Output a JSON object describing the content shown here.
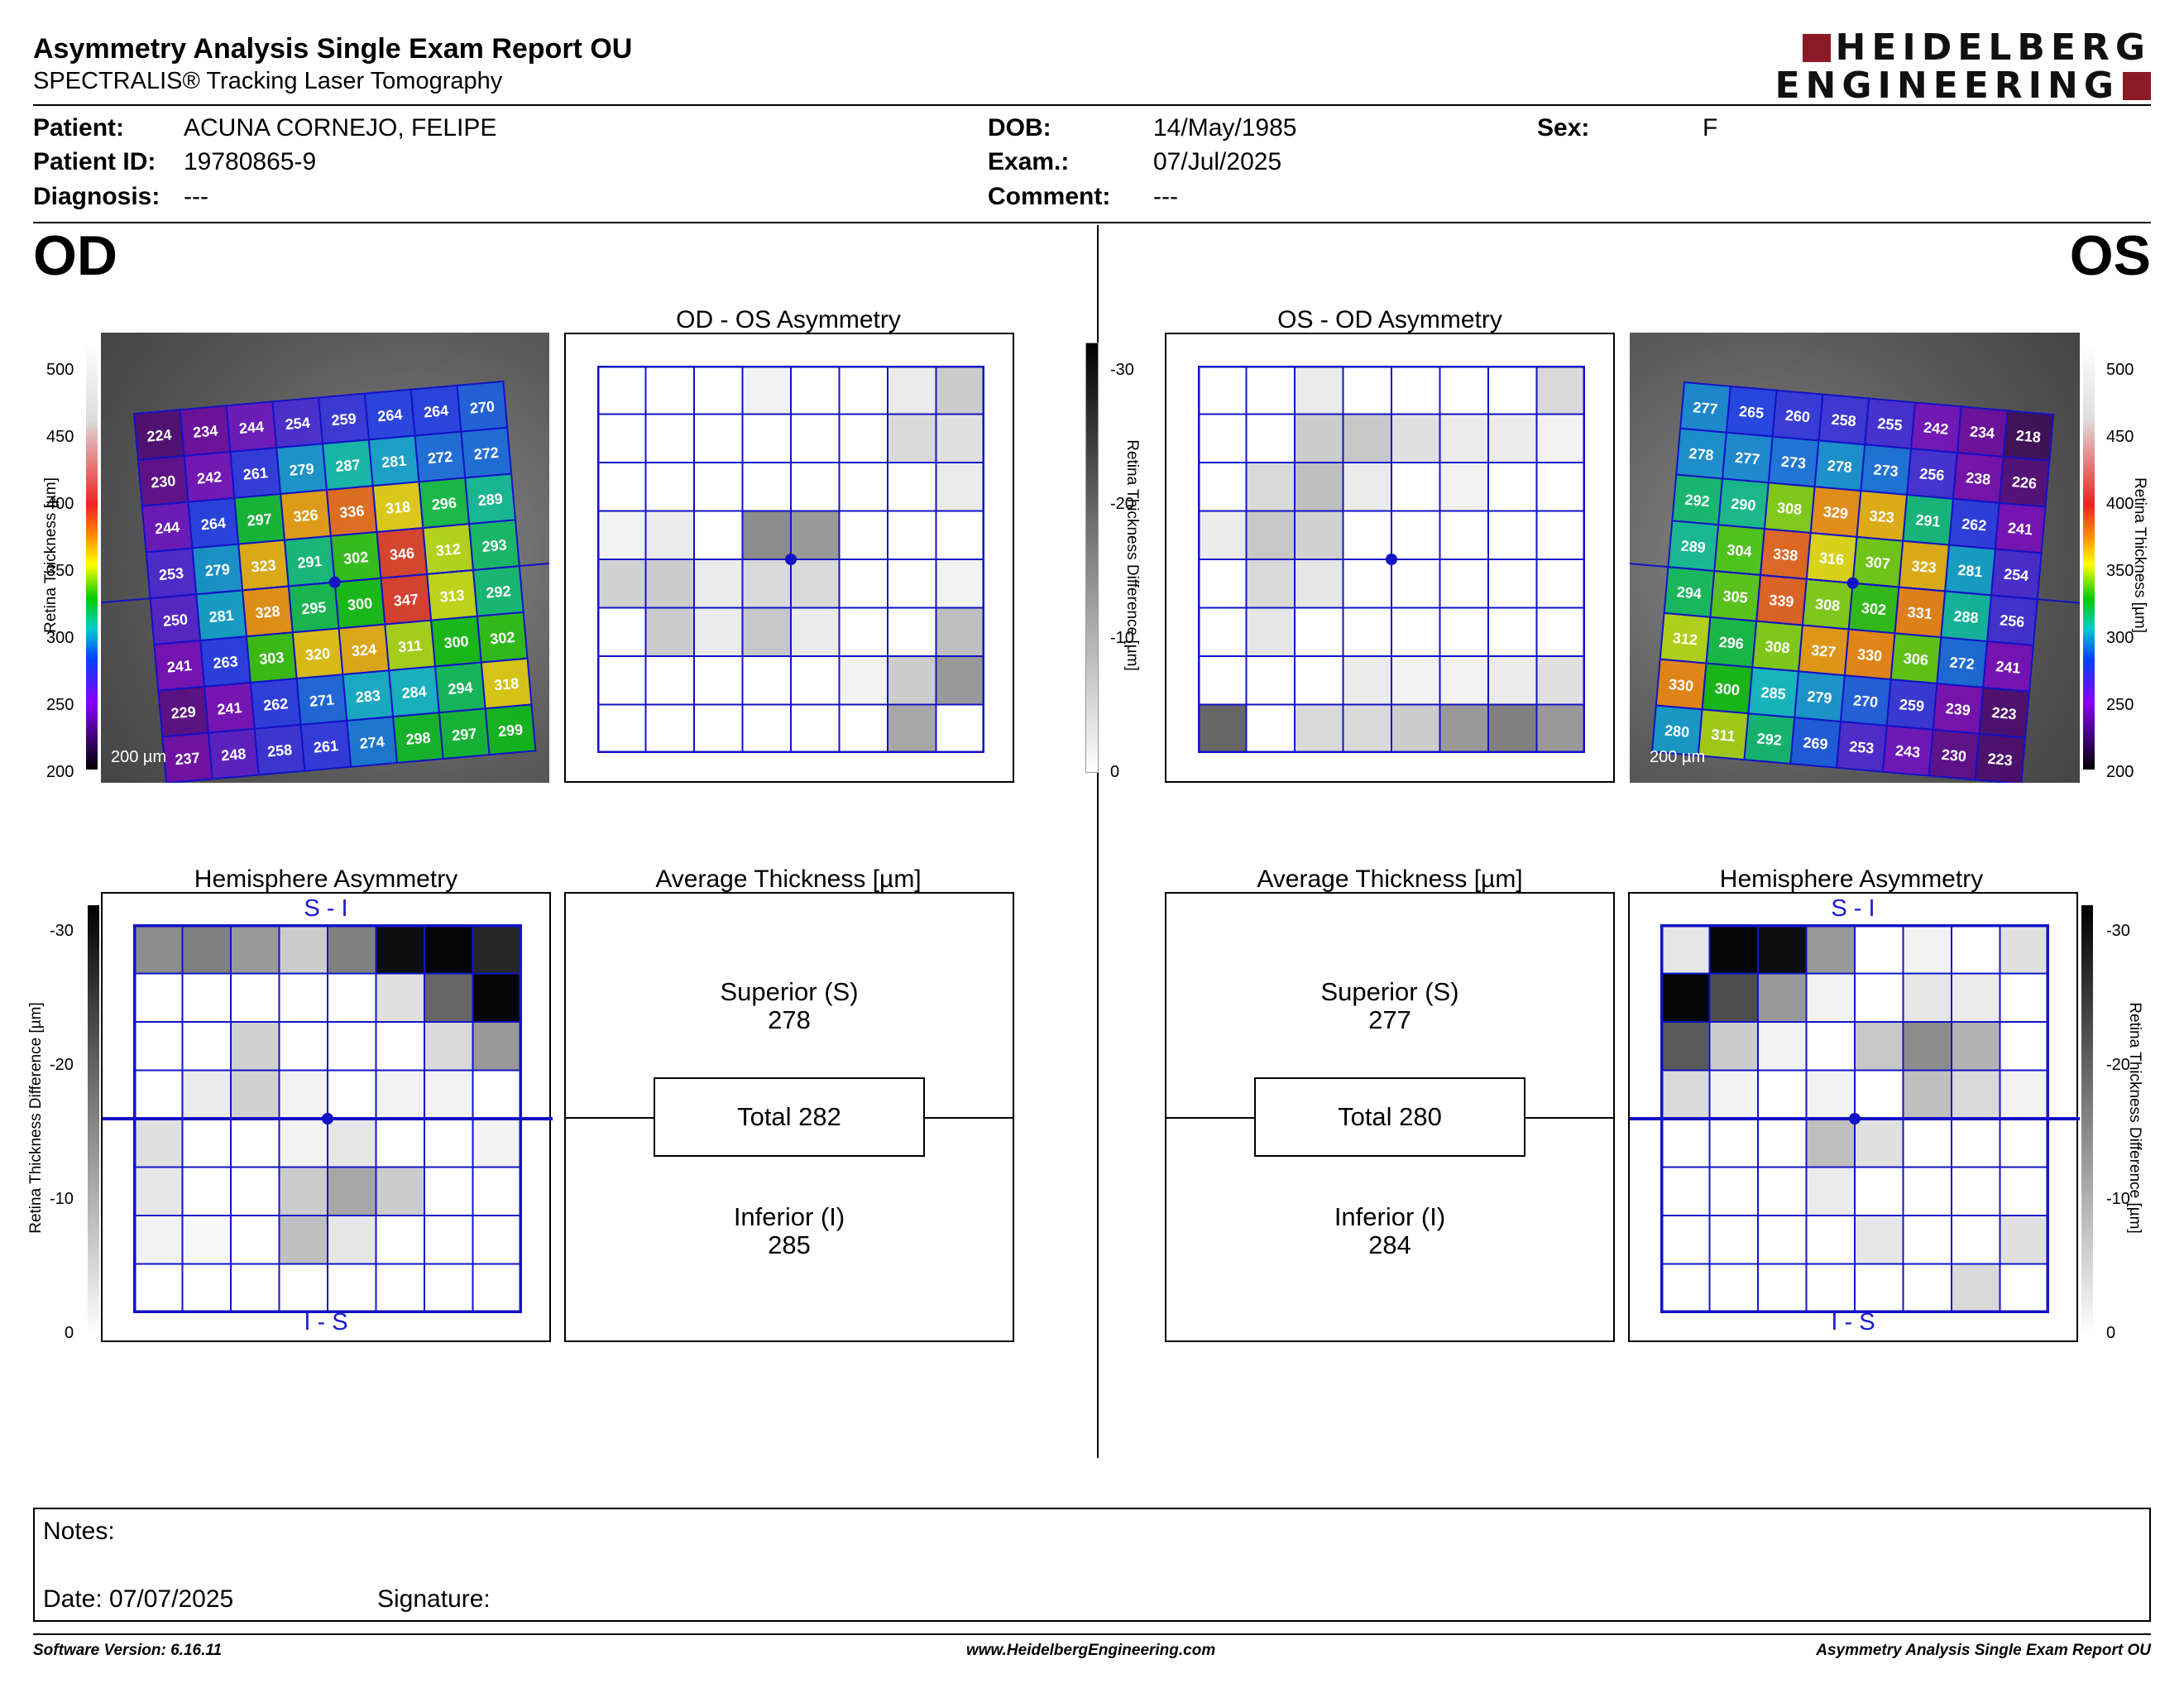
{
  "header": {
    "title": "Asymmetry Analysis Single Exam Report OU",
    "subtitle": "SPECTRALIS® Tracking Laser Tomography",
    "logo_line1": "HEIDELBERG",
    "logo_line2": "ENGINEERING",
    "brand_color": "#8b1a26"
  },
  "patient": {
    "patient_label": "Patient:",
    "patient_value": "ACUNA CORNEJO, FELIPE",
    "id_label": "Patient ID:",
    "id_value": "19780865-9",
    "diagnosis_label": "Diagnosis:",
    "diagnosis_value": "---",
    "dob_label": "DOB:",
    "dob_value": "14/May/1985",
    "exam_label": "Exam.:",
    "exam_value": "07/Jul/2025",
    "comment_label": "Comment:",
    "comment_value": "---",
    "sex_label": "Sex:",
    "sex_value": "F"
  },
  "od": {
    "eye_label": "OD",
    "asym_title": "OD - OS Asymmetry",
    "hemi_title": "Hemisphere Asymmetry",
    "avg_title": "Average Thickness [µm]",
    "superior_label": "Superior (S)",
    "superior_value": "278",
    "total_label": "Total 282",
    "inferior_label": "Inferior (I)",
    "inferior_value": "285",
    "scale_bar": "200 µm",
    "thickness": [
      [
        224,
        234,
        244,
        254,
        259,
        264,
        264,
        270
      ],
      [
        230,
        242,
        261,
        279,
        287,
        281,
        272,
        272
      ],
      [
        244,
        264,
        297,
        326,
        336,
        318,
        296,
        289
      ],
      [
        253,
        279,
        323,
        291,
        302,
        346,
        312,
        293
      ],
      [
        250,
        281,
        328,
        295,
        300,
        347,
        313,
        292
      ],
      [
        241,
        263,
        303,
        320,
        324,
        311,
        300,
        302
      ],
      [
        229,
        241,
        262,
        271,
        283,
        284,
        294,
        318
      ],
      [
        237,
        248,
        258,
        261,
        274,
        298,
        297,
        299
      ]
    ],
    "asym_shade": [
      [
        0,
        0,
        0,
        0.05,
        0,
        0,
        0.08,
        0.2
      ],
      [
        0,
        0,
        0,
        0,
        0,
        0,
        0.15,
        0.12
      ],
      [
        0,
        0,
        0,
        0,
        0,
        0,
        0,
        0.08
      ],
      [
        0.05,
        0.08,
        0,
        0.45,
        0.4,
        0,
        0,
        0
      ],
      [
        0.18,
        0.2,
        0.08,
        0.15,
        0.15,
        0,
        0,
        0.05
      ],
      [
        0,
        0.2,
        0.08,
        0.22,
        0.08,
        0,
        0,
        0.25
      ],
      [
        0,
        0,
        0,
        0,
        0,
        0.05,
        0.2,
        0.4
      ],
      [
        0,
        0,
        0,
        0,
        0,
        0,
        0.35,
        0
      ]
    ],
    "hemi_shade": [
      [
        0.45,
        0.5,
        0.4,
        0.2,
        0.5,
        0.95,
        0.98,
        0.85
      ],
      [
        0,
        0,
        0,
        0,
        0,
        0.12,
        0.6,
        0.98
      ],
      [
        0,
        0,
        0.18,
        0,
        0,
        0,
        0.15,
        0.4
      ],
      [
        0,
        0.08,
        0.18,
        0.05,
        0,
        0.05,
        0.05,
        0
      ],
      [
        0.12,
        0,
        0,
        0.05,
        0.1,
        0,
        0,
        0.05
      ],
      [
        0.1,
        0,
        0,
        0.2,
        0.35,
        0.2,
        0,
        0
      ],
      [
        0.05,
        0.03,
        0,
        0.25,
        0.1,
        0,
        0,
        0
      ],
      [
        0,
        0,
        0,
        0,
        0,
        0,
        0,
        0
      ]
    ]
  },
  "os": {
    "eye_label": "OS",
    "asym_title": "OS - OD Asymmetry",
    "hemi_title": "Hemisphere Asymmetry",
    "avg_title": "Average Thickness [µm]",
    "superior_label": "Superior (S)",
    "superior_value": "277",
    "total_label": "Total 280",
    "inferior_label": "Inferior (I)",
    "inferior_value": "284",
    "scale_bar": "200 µm",
    "thickness": [
      [
        277,
        265,
        260,
        258,
        255,
        242,
        234,
        218
      ],
      [
        278,
        277,
        273,
        278,
        273,
        256,
        238,
        226
      ],
      [
        292,
        290,
        308,
        329,
        323,
        291,
        262,
        241
      ],
      [
        289,
        304,
        338,
        316,
        307,
        323,
        281,
        254
      ],
      [
        294,
        305,
        339,
        308,
        302,
        331,
        288,
        256
      ],
      [
        312,
        296,
        308,
        327,
        330,
        306,
        272,
        241
      ],
      [
        330,
        300,
        285,
        279,
        270,
        259,
        239,
        223
      ],
      [
        280,
        311,
        292,
        269,
        253,
        243,
        230,
        223
      ]
    ],
    "asym_shade": [
      [
        0,
        0,
        0.08,
        0,
        0,
        0,
        0,
        0.15
      ],
      [
        0,
        0,
        0.2,
        0.22,
        0.12,
        0.08,
        0.08,
        0.05
      ],
      [
        0,
        0.15,
        0.25,
        0.08,
        0,
        0.05,
        0,
        0
      ],
      [
        0.08,
        0.22,
        0.18,
        0,
        0,
        0,
        0,
        0
      ],
      [
        0,
        0.15,
        0.1,
        0,
        0,
        0,
        0,
        0
      ],
      [
        0,
        0.1,
        0,
        0,
        0,
        0,
        0,
        0
      ],
      [
        0,
        0,
        0,
        0.08,
        0.05,
        0.05,
        0.08,
        0.12
      ],
      [
        0.6,
        0,
        0.15,
        0.15,
        0.2,
        0.4,
        0.5,
        0.4
      ]
    ],
    "hemi_shade": [
      [
        0.1,
        0.98,
        0.95,
        0.4,
        0,
        0.05,
        0,
        0.12
      ],
      [
        0.98,
        0.7,
        0.4,
        0.05,
        0,
        0.1,
        0.08,
        0
      ],
      [
        0.65,
        0.2,
        0.05,
        0,
        0.22,
        0.45,
        0.3,
        0
      ],
      [
        0.15,
        0.05,
        0,
        0.05,
        0,
        0.25,
        0.15,
        0.05
      ],
      [
        0,
        0,
        0,
        0.25,
        0.12,
        0,
        0,
        0
      ],
      [
        0,
        0,
        0,
        0.08,
        0,
        0,
        0,
        0
      ],
      [
        0,
        0,
        0,
        0,
        0.1,
        0,
        0,
        0.12
      ],
      [
        0,
        0,
        0,
        0,
        0,
        0,
        0.15,
        0
      ]
    ]
  },
  "axes": {
    "thickness_ticks": [
      "500",
      "450",
      "400",
      "350",
      "300",
      "250",
      "200"
    ],
    "thickness_label": "Retina Thickness [µm]",
    "diff_ticks": [
      "-30",
      "-20",
      "-10",
      "0"
    ],
    "diff_label": "Retina Thickness Difference [µm]",
    "hemi_top": "S - I",
    "hemi_bottom": "I - S"
  },
  "notes": {
    "notes_label": "Notes:",
    "date_label": "Date: 07/07/2025",
    "signature_label": "Signature:"
  },
  "footer": {
    "software": "Software Version: 6.16.11",
    "website": "www.HeidelbergEngineering.com",
    "report": "Asymmetry Analysis Single Exam Report OU"
  },
  "colors": {
    "grid_blue": "#1212c8",
    "text_blue": "#1a1ad0"
  }
}
